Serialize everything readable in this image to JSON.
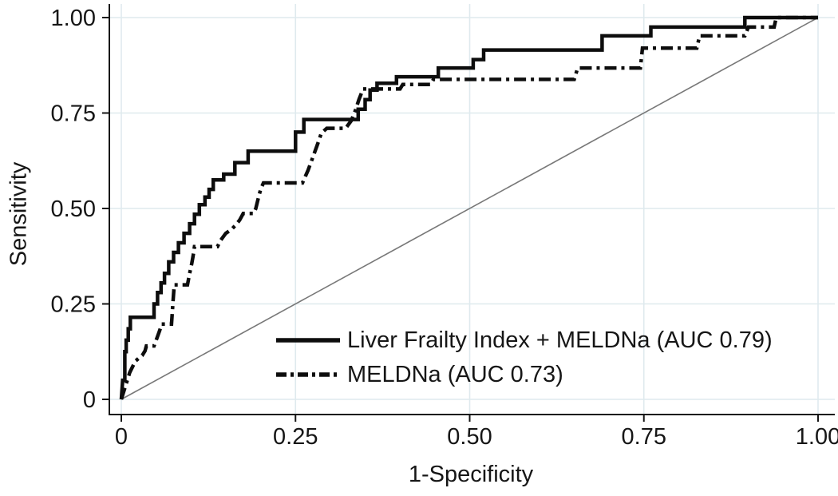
{
  "figure": {
    "background": "#ffffff",
    "text_color": "#161616"
  },
  "chart_data": {
    "type": "line",
    "subtype": "roc-step-curves",
    "title": "",
    "xlabel": "1-Specificity",
    "ylabel": "Sensitivity",
    "xlim": [
      0,
      1
    ],
    "ylim": [
      0,
      1
    ],
    "grid": "on",
    "grid_color": "#dfeaee",
    "axis_color": "#161616",
    "x_ticks": {
      "values": [
        0,
        0.25,
        0.5,
        0.75,
        1
      ],
      "labels": [
        "0",
        "0.25",
        "0.50",
        "0.75",
        "1.00"
      ]
    },
    "y_ticks": {
      "values": [
        0,
        0.25,
        0.5,
        0.75,
        1
      ],
      "labels": [
        "0",
        "0.25",
        "0.50",
        "0.75",
        "1.00"
      ]
    },
    "reference_line": {
      "from": [
        0,
        0
      ],
      "to": [
        1,
        1
      ],
      "color": "#787878",
      "style": "solid"
    },
    "legend": {
      "position": "inside-lower-right",
      "entries": [
        {
          "label": "Liver Frailty Index + MELDNa (AUC 0.79)",
          "style": "solid"
        },
        {
          "label": "MELDNa (AUC 0.73)",
          "style": "dash-dot"
        }
      ]
    },
    "series": [
      {
        "name": "Liver Frailty Index + MELDNa",
        "auc": 0.79,
        "color": "#0d0d0d",
        "line_style": "solid",
        "points": [
          [
            0,
            0
          ],
          [
            0.002,
            0.05
          ],
          [
            0.005,
            0.05
          ],
          [
            0.005,
            0.125
          ],
          [
            0.007,
            0.125
          ],
          [
            0.007,
            0.155
          ],
          [
            0.01,
            0.155
          ],
          [
            0.01,
            0.185
          ],
          [
            0.013,
            0.185
          ],
          [
            0.013,
            0.215
          ],
          [
            0.047,
            0.215
          ],
          [
            0.047,
            0.25
          ],
          [
            0.052,
            0.25
          ],
          [
            0.052,
            0.28
          ],
          [
            0.057,
            0.28
          ],
          [
            0.057,
            0.305
          ],
          [
            0.062,
            0.305
          ],
          [
            0.062,
            0.33
          ],
          [
            0.068,
            0.33
          ],
          [
            0.068,
            0.36
          ],
          [
            0.075,
            0.36
          ],
          [
            0.075,
            0.385
          ],
          [
            0.082,
            0.385
          ],
          [
            0.082,
            0.41
          ],
          [
            0.09,
            0.41
          ],
          [
            0.09,
            0.435
          ],
          [
            0.098,
            0.435
          ],
          [
            0.098,
            0.46
          ],
          [
            0.105,
            0.46
          ],
          [
            0.105,
            0.485
          ],
          [
            0.112,
            0.485
          ],
          [
            0.112,
            0.51
          ],
          [
            0.12,
            0.51
          ],
          [
            0.12,
            0.53
          ],
          [
            0.126,
            0.53
          ],
          [
            0.126,
            0.55
          ],
          [
            0.132,
            0.55
          ],
          [
            0.132,
            0.575
          ],
          [
            0.147,
            0.575
          ],
          [
            0.147,
            0.59
          ],
          [
            0.163,
            0.59
          ],
          [
            0.163,
            0.62
          ],
          [
            0.182,
            0.62
          ],
          [
            0.182,
            0.65
          ],
          [
            0.25,
            0.65
          ],
          [
            0.25,
            0.7
          ],
          [
            0.262,
            0.7
          ],
          [
            0.262,
            0.733
          ],
          [
            0.34,
            0.733
          ],
          [
            0.34,
            0.76
          ],
          [
            0.35,
            0.76
          ],
          [
            0.35,
            0.785
          ],
          [
            0.357,
            0.785
          ],
          [
            0.357,
            0.81
          ],
          [
            0.367,
            0.81
          ],
          [
            0.367,
            0.828
          ],
          [
            0.395,
            0.828
          ],
          [
            0.395,
            0.845
          ],
          [
            0.455,
            0.845
          ],
          [
            0.455,
            0.868
          ],
          [
            0.505,
            0.868
          ],
          [
            0.505,
            0.89
          ],
          [
            0.52,
            0.89
          ],
          [
            0.52,
            0.915
          ],
          [
            0.69,
            0.915
          ],
          [
            0.69,
            0.952
          ],
          [
            0.76,
            0.952
          ],
          [
            0.76,
            0.975
          ],
          [
            0.895,
            0.975
          ],
          [
            0.895,
            1
          ],
          [
            1,
            1
          ]
        ]
      },
      {
        "name": "MELDNa",
        "auc": 0.73,
        "color": "#0d0d0d",
        "line_style": "dash-dot",
        "points": [
          [
            0,
            0
          ],
          [
            0.006,
            0.035
          ],
          [
            0.012,
            0.07
          ],
          [
            0.02,
            0.1
          ],
          [
            0.03,
            0.115
          ],
          [
            0.034,
            0.127
          ],
          [
            0.036,
            0.14
          ],
          [
            0.047,
            0.14
          ],
          [
            0.05,
            0.155
          ],
          [
            0.055,
            0.18
          ],
          [
            0.058,
            0.197
          ],
          [
            0.072,
            0.197
          ],
          [
            0.074,
            0.25
          ],
          [
            0.076,
            0.3
          ],
          [
            0.095,
            0.3
          ],
          [
            0.098,
            0.33
          ],
          [
            0.101,
            0.355
          ],
          [
            0.103,
            0.375
          ],
          [
            0.105,
            0.4
          ],
          [
            0.138,
            0.4
          ],
          [
            0.142,
            0.415
          ],
          [
            0.15,
            0.435
          ],
          [
            0.158,
            0.445
          ],
          [
            0.165,
            0.458
          ],
          [
            0.17,
            0.47
          ],
          [
            0.175,
            0.487
          ],
          [
            0.19,
            0.487
          ],
          [
            0.193,
            0.5
          ],
          [
            0.197,
            0.53
          ],
          [
            0.2,
            0.55
          ],
          [
            0.204,
            0.567
          ],
          [
            0.26,
            0.567
          ],
          [
            0.268,
            0.6
          ],
          [
            0.275,
            0.635
          ],
          [
            0.282,
            0.67
          ],
          [
            0.287,
            0.697
          ],
          [
            0.295,
            0.71
          ],
          [
            0.322,
            0.71
          ],
          [
            0.33,
            0.73
          ],
          [
            0.336,
            0.757
          ],
          [
            0.341,
            0.785
          ],
          [
            0.347,
            0.813
          ],
          [
            0.4,
            0.813
          ],
          [
            0.404,
            0.825
          ],
          [
            0.444,
            0.825
          ],
          [
            0.448,
            0.838
          ],
          [
            0.65,
            0.838
          ],
          [
            0.655,
            0.868
          ],
          [
            0.745,
            0.868
          ],
          [
            0.748,
            0.92
          ],
          [
            0.826,
            0.92
          ],
          [
            0.83,
            0.952
          ],
          [
            0.895,
            0.952
          ],
          [
            0.9,
            0.975
          ],
          [
            0.937,
            0.975
          ],
          [
            0.94,
            1
          ],
          [
            1,
            1
          ]
        ]
      }
    ]
  }
}
